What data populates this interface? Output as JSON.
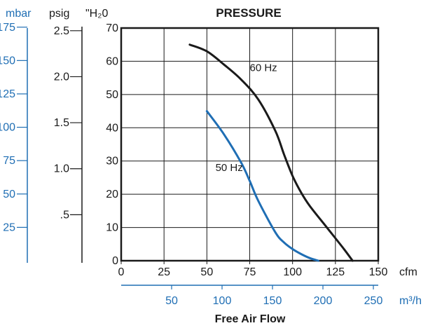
{
  "chart_data": {
    "type": "line",
    "title": "PRESSURE",
    "xlabel": "Free Air Flow",
    "ylabel": "\"H₂0",
    "xlim": [
      0,
      150
    ],
    "ylim": [
      0,
      70
    ],
    "grid": true,
    "x_ticks": [
      0,
      25,
      50,
      75,
      100,
      125,
      150
    ],
    "y_ticks": [
      0,
      10,
      20,
      30,
      40,
      50,
      60,
      70
    ],
    "x_unit": "cfm",
    "x2_unit": "m³/h",
    "x2_ticks": [
      50,
      100,
      150,
      200,
      250
    ],
    "y_psig_label": "psig",
    "y_psig_ticks": [
      ".5",
      "1.0",
      "1.5",
      "2.0",
      "2.5"
    ],
    "y_psig_values": [
      0.5,
      1.0,
      1.5,
      2.0,
      2.5
    ],
    "y_mbar_label": "mbar",
    "y_mbar_ticks": [
      25,
      50,
      75,
      100,
      125,
      150,
      175
    ],
    "series": [
      {
        "name": "60 Hz",
        "color": "#1a1a1a",
        "x": [
          40,
          50,
          60,
          70,
          80,
          90,
          95,
          100,
          105,
          110,
          120,
          130,
          135
        ],
        "y": [
          65,
          63,
          59,
          54.5,
          48.5,
          39,
          32,
          25.5,
          20.5,
          16.5,
          10,
          3.5,
          0
        ]
      },
      {
        "name": "50 Hz",
        "color": "#1f6eb4",
        "x": [
          50,
          60,
          70,
          75,
          80,
          90,
          95,
          100,
          105,
          110,
          115
        ],
        "y": [
          45,
          38,
          29.5,
          24,
          18,
          8.5,
          5.5,
          3.5,
          2,
          0.8,
          0
        ]
      }
    ],
    "annotations": [
      {
        "text": "60 Hz",
        "x": 75,
        "y": 57
      },
      {
        "text": "50 Hz",
        "x": 55,
        "y": 27
      }
    ]
  },
  "colors": {
    "axis": "#1a1a1a",
    "grid": "#1a1a1a",
    "secondary": "#1f6eb4"
  }
}
